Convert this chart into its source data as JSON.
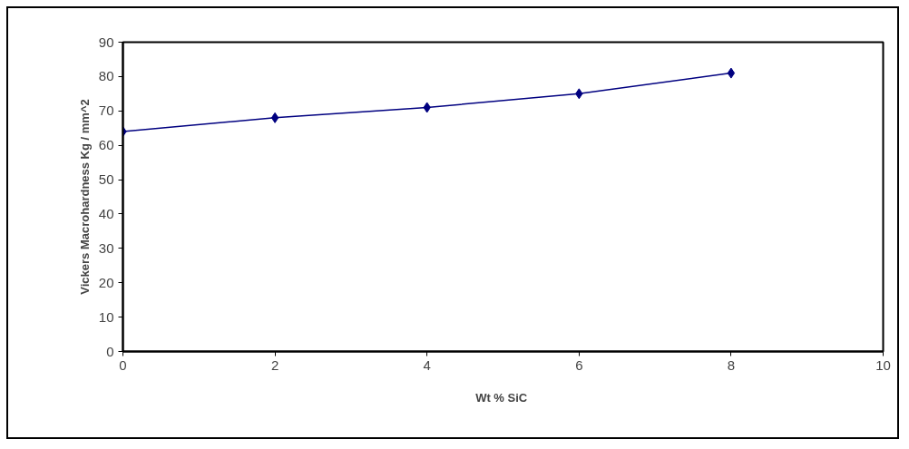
{
  "chart_data": {
    "type": "line",
    "xlabel": "Wt  % SiC",
    "ylabel": "Vickers Macrohardness Kg / mm^2",
    "x": [
      0,
      2,
      4,
      6,
      8
    ],
    "series": [
      {
        "color": "#000080",
        "values": [
          64,
          68,
          71,
          75,
          81
        ]
      }
    ],
    "xlim": [
      0,
      10
    ],
    "xticks": [
      0,
      2,
      4,
      6,
      8,
      10
    ],
    "ylim": [
      0,
      90
    ],
    "yticks": [
      0,
      10,
      20,
      30,
      40,
      50,
      60,
      70,
      80,
      90
    ],
    "marker": "diamond",
    "line_style": "solid",
    "grid": false
  }
}
